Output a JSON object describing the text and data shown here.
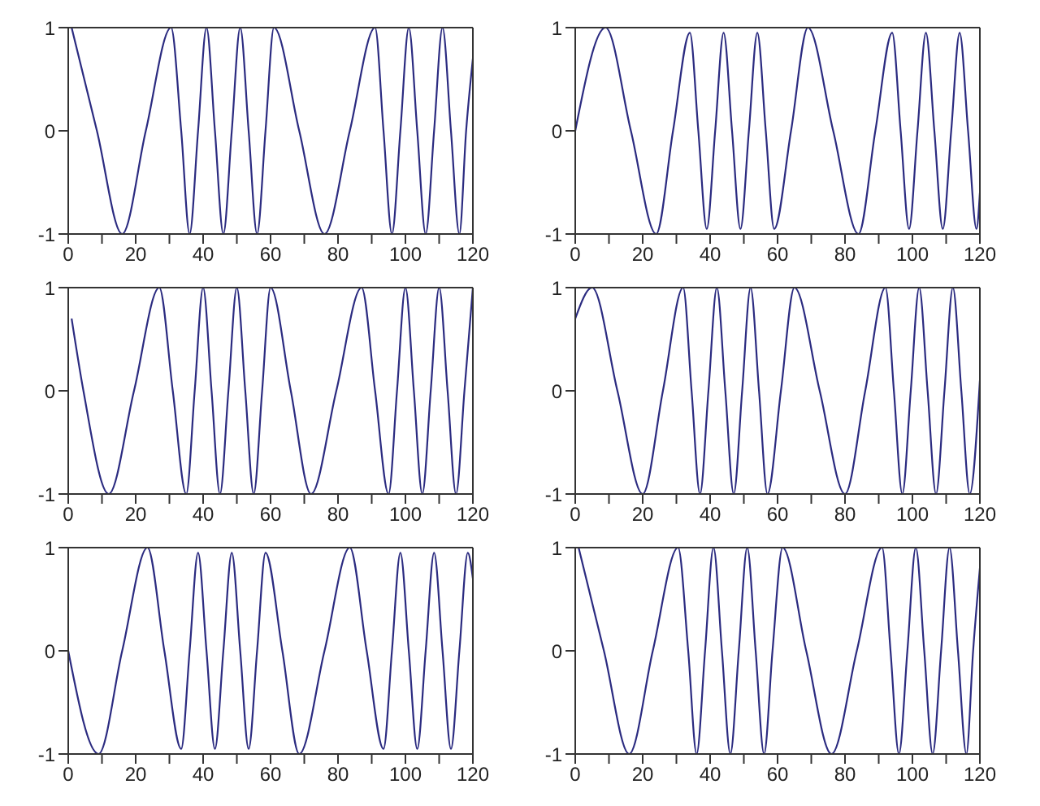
{
  "chart_data": [
    {
      "type": "line",
      "color": "#2b2b80",
      "marker": "none",
      "xlim": [
        0,
        120
      ],
      "ylim": [
        -1,
        1
      ],
      "xticks": [
        0,
        {
          "value": 10,
          "label": null
        },
        20,
        {
          "value": 30,
          "label": null
        },
        40,
        {
          "value": 50,
          "label": null
        },
        60,
        {
          "value": 70,
          "label": null
        },
        80,
        {
          "value": 90,
          "label": null
        },
        100,
        {
          "value": 110,
          "label": null
        },
        120
      ],
      "yticks": [
        -1,
        0,
        1
      ],
      "x": [
        1,
        8.5,
        16,
        23,
        30.5,
        33.5,
        36,
        38.5,
        41,
        43.5,
        46,
        48.5,
        51,
        53.5,
        56,
        58.5,
        61,
        68.5,
        76,
        83.5,
        91,
        93.5,
        96,
        98.5,
        101,
        103.5,
        106,
        108.5,
        111,
        113.5,
        116,
        118,
        120
      ],
      "values": [
        1,
        0,
        -1,
        0,
        1,
        0,
        -1,
        0,
        1,
        0,
        -1,
        0,
        1,
        0,
        -1,
        0,
        1,
        0,
        -1,
        0,
        1,
        0,
        -1,
        0,
        1,
        0,
        -1,
        0,
        1,
        0,
        -1,
        0,
        0.7
      ]
    },
    {
      "type": "line",
      "color": "#2b2b80",
      "marker": "none",
      "xlim": [
        0,
        120
      ],
      "ylim": [
        -1,
        1
      ],
      "xticks": [
        0,
        {
          "value": 10,
          "label": null
        },
        20,
        {
          "value": 30,
          "label": null
        },
        40,
        {
          "value": 50,
          "label": null
        },
        60,
        {
          "value": 70,
          "label": null
        },
        80,
        {
          "value": 90,
          "label": null
        },
        100,
        {
          "value": 110,
          "label": null
        },
        120
      ],
      "yticks": [
        -1,
        0,
        1
      ],
      "x": [
        0,
        9,
        16.5,
        24,
        29,
        34,
        36.5,
        39,
        41.5,
        44,
        46.5,
        49,
        51.5,
        54,
        56.5,
        59,
        64,
        69,
        76.5,
        84,
        89,
        94,
        96.5,
        99,
        101.5,
        104,
        106.5,
        109,
        111.5,
        114,
        116.5,
        119,
        120
      ],
      "values": [
        0,
        1,
        0,
        -1,
        0,
        0.95,
        0,
        -0.95,
        0,
        0.95,
        0,
        -0.95,
        0,
        0.95,
        0,
        -0.95,
        0,
        1,
        0,
        -1,
        0,
        0.95,
        0,
        -0.95,
        0,
        0.95,
        0,
        -0.95,
        0,
        0.95,
        0,
        -0.95,
        -0.6
      ]
    },
    {
      "type": "line",
      "color": "#2b2b80",
      "marker": "none",
      "xlim": [
        0,
        120
      ],
      "ylim": [
        -1,
        1
      ],
      "xticks": [
        0,
        {
          "value": 10,
          "label": null
        },
        20,
        {
          "value": 30,
          "label": null
        },
        40,
        {
          "value": 50,
          "label": null
        },
        60,
        {
          "value": 70,
          "label": null
        },
        80,
        {
          "value": 90,
          "label": null
        },
        100,
        {
          "value": 110,
          "label": null
        },
        120
      ],
      "yticks": [
        -1,
        0,
        1
      ],
      "x": [
        1,
        4.5,
        12,
        19.5,
        27,
        31,
        35,
        37.5,
        40,
        42.5,
        45,
        47.5,
        50,
        52.5,
        55,
        57.5,
        60,
        66,
        72,
        79.5,
        87,
        91,
        95,
        97.5,
        100,
        102.5,
        105,
        107.5,
        110,
        112.5,
        115,
        117.5,
        120
      ],
      "values": [
        0.7,
        0,
        -1,
        0,
        1,
        0,
        -1,
        0,
        1,
        0,
        -1,
        0,
        1,
        0,
        -1,
        0,
        1,
        0,
        -1,
        0,
        1,
        0,
        -1,
        0,
        1,
        0,
        -1,
        0,
        1,
        0,
        -1,
        0,
        1
      ]
    },
    {
      "type": "line",
      "color": "#2b2b80",
      "marker": "none",
      "xlim": [
        0,
        120
      ],
      "ylim": [
        -1,
        1
      ],
      "xticks": [
        0,
        {
          "value": 10,
          "label": null
        },
        20,
        {
          "value": 30,
          "label": null
        },
        40,
        {
          "value": 50,
          "label": null
        },
        60,
        {
          "value": 70,
          "label": null
        },
        80,
        {
          "value": 90,
          "label": null
        },
        100,
        {
          "value": 110,
          "label": null
        },
        120
      ],
      "yticks": [
        -1,
        0,
        1
      ],
      "x": [
        0,
        5,
        12.5,
        20,
        26,
        32,
        34.5,
        37,
        39.5,
        42,
        44.5,
        47,
        49.5,
        52,
        54.5,
        57,
        61,
        65,
        72.5,
        80,
        86,
        92,
        94.5,
        97,
        99.5,
        102,
        104.5,
        107,
        109.5,
        112,
        114.5,
        117,
        120
      ],
      "values": [
        0.7,
        1,
        0,
        -1,
        0,
        1,
        0,
        -1,
        0,
        1,
        0,
        -1,
        0,
        1,
        0,
        -1,
        0,
        1,
        0,
        -1,
        0,
        1,
        0,
        -1,
        0,
        1,
        0,
        -1,
        0,
        1,
        0,
        -1,
        0.1
      ]
    },
    {
      "type": "line",
      "color": "#2b2b80",
      "marker": "none",
      "xlim": [
        0,
        120
      ],
      "ylim": [
        -1,
        1
      ],
      "xticks": [
        0,
        {
          "value": 10,
          "label": null
        },
        20,
        {
          "value": 30,
          "label": null
        },
        40,
        {
          "value": 50,
          "label": null
        },
        60,
        {
          "value": 70,
          "label": null
        },
        80,
        {
          "value": 90,
          "label": null
        },
        100,
        {
          "value": 110,
          "label": null
        },
        120
      ],
      "yticks": [
        -1,
        0,
        1
      ],
      "x": [
        0,
        9,
        16,
        23.5,
        28.5,
        33.5,
        36,
        38.5,
        41,
        43.5,
        46,
        48.5,
        51,
        53.5,
        56,
        58.5,
        63.5,
        68.5,
        76,
        83.5,
        88.5,
        93.5,
        96,
        98.5,
        101,
        103.5,
        106,
        108.5,
        111,
        113.5,
        116,
        118.5,
        120
      ],
      "values": [
        0,
        -1,
        0,
        1,
        0,
        -0.95,
        0,
        0.95,
        0,
        -0.95,
        0,
        0.95,
        0,
        -0.95,
        0,
        0.95,
        0,
        -1,
        0,
        1,
        0,
        -0.95,
        0,
        0.95,
        0,
        -0.95,
        0,
        0.95,
        0,
        -0.95,
        0,
        0.95,
        0.7
      ]
    },
    {
      "type": "line",
      "color": "#2b2b80",
      "marker": "none",
      "xlim": [
        0,
        120
      ],
      "ylim": [
        -1,
        1
      ],
      "xticks": [
        0,
        {
          "value": 10,
          "label": null
        },
        20,
        {
          "value": 30,
          "label": null
        },
        40,
        {
          "value": 50,
          "label": null
        },
        60,
        {
          "value": 70,
          "label": null
        },
        80,
        {
          "value": 90,
          "label": null
        },
        100,
        {
          "value": 110,
          "label": null
        },
        120
      ],
      "yticks": [
        -1,
        0,
        1
      ],
      "x": [
        1,
        8.5,
        16,
        23,
        30.5,
        33.5,
        36,
        38.5,
        41,
        43.5,
        46,
        48.5,
        51,
        53.5,
        56,
        58.5,
        61.5,
        68.5,
        76,
        83.5,
        91,
        93.5,
        96,
        98.5,
        101,
        103.5,
        106,
        108.5,
        111,
        113.5,
        116,
        118,
        120
      ],
      "values": [
        1,
        0,
        -1,
        0,
        1,
        0,
        -1,
        0,
        1,
        0,
        -1,
        0,
        1,
        0,
        -1,
        0,
        1,
        0,
        -1,
        0,
        1,
        0,
        -1,
        0,
        1,
        0,
        -1,
        0,
        1,
        0,
        -1,
        0,
        0.8
      ]
    }
  ]
}
